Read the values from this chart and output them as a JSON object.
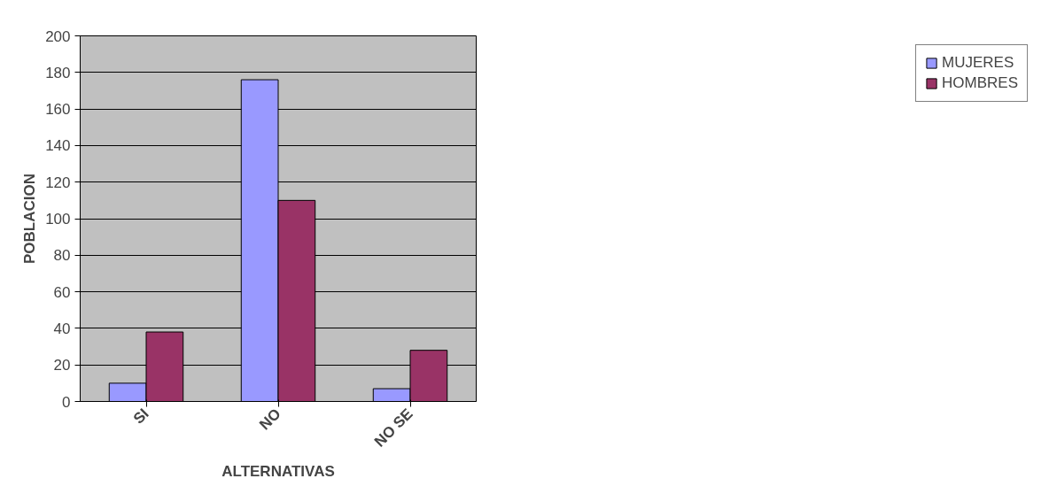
{
  "chart_data": {
    "type": "bar",
    "xlabel": "ALTERNATIVAS",
    "ylabel": "POBLACION",
    "categories": [
      "SI",
      "NO",
      "NO SE"
    ],
    "series": [
      {
        "name": "MUJERES",
        "color": "#9999ff",
        "values": [
          10,
          176,
          7
        ]
      },
      {
        "name": "HOMBRES",
        "color": "#993366",
        "values": [
          38,
          110,
          28
        ]
      }
    ],
    "ylim": [
      0,
      200
    ],
    "yticks": [
      0,
      20,
      40,
      60,
      80,
      100,
      120,
      140,
      160,
      180,
      200
    ],
    "grid": "y",
    "legend": "right"
  }
}
